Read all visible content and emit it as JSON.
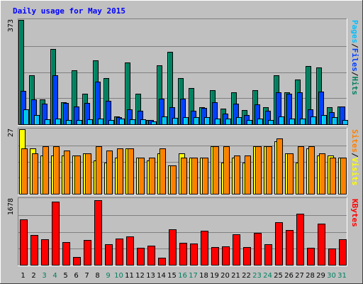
{
  "page": {
    "title": "Daily usage for May 2015",
    "background": "#c0c0c0",
    "panel_background": "#c0c0c0",
    "gridline_color": "#808080",
    "title_color": "#0000ff"
  },
  "chart_data": [
    {
      "type": "bar",
      "panel": "hits-files-pages",
      "ymax_label": "373",
      "ylim": [
        0,
        373
      ],
      "categories": [
        "1",
        "2",
        "3",
        "4",
        "5",
        "6",
        "7",
        "8",
        "9",
        "10",
        "11",
        "12",
        "13",
        "14",
        "15",
        "16",
        "17",
        "18",
        "19",
        "20",
        "21",
        "22",
        "23",
        "24",
        "25",
        "26",
        "27",
        "28",
        "29",
        "30",
        "31"
      ],
      "legend": [
        {
          "name": "Pages",
          "color": "#00c0ff"
        },
        {
          "name": "/",
          "color": "#000000"
        },
        {
          "name": "Files",
          "color": "#0040ff"
        },
        {
          "name": "/",
          "color": "#000000"
        },
        {
          "name": "Hits",
          "color": "#008060"
        }
      ],
      "series": [
        {
          "name": "Hits",
          "color": "#008060",
          "values": [
            373,
            176,
            89,
            268,
            79,
            192,
            110,
            228,
            164,
            28,
            222,
            110,
            16,
            210,
            258,
            166,
            129,
            62,
            121,
            56,
            113,
            52,
            123,
            62,
            176,
            113,
            161,
            208,
            202,
            62,
            64
          ]
        },
        {
          "name": "Files",
          "color": "#0040ff",
          "values": [
            119,
            90,
            74,
            176,
            76,
            64,
            76,
            152,
            84,
            25,
            54,
            49,
            14,
            92,
            62,
            92,
            47,
            58,
            79,
            38,
            73,
            32,
            71,
            48,
            113,
            109,
            114,
            54,
            117,
            43,
            64
          ]
        },
        {
          "name": "Pages",
          "color": "#00c0ff",
          "values": [
            54,
            34,
            19,
            21,
            16,
            16,
            19,
            21,
            16,
            21,
            17,
            19,
            11,
            28,
            22,
            25,
            25,
            25,
            21,
            21,
            25,
            14,
            21,
            15,
            28,
            21,
            21,
            28,
            32,
            25,
            16
          ]
        }
      ]
    },
    {
      "type": "bar",
      "panel": "visits-sites",
      "ymax_label": "27",
      "ylim": [
        0,
        27
      ],
      "categories": [
        "1",
        "2",
        "3",
        "4",
        "5",
        "6",
        "7",
        "8",
        "9",
        "10",
        "11",
        "12",
        "13",
        "14",
        "15",
        "16",
        "17",
        "18",
        "19",
        "20",
        "21",
        "22",
        "23",
        "24",
        "25",
        "26",
        "27",
        "28",
        "29",
        "30",
        "31"
      ],
      "legend": [
        {
          "name": "Sites",
          "color": "#ff8000"
        },
        {
          "name": "/",
          "color": "#000000"
        },
        {
          "name": "Visits",
          "color": "#ffff00"
        }
      ],
      "series": [
        {
          "name": "Visits",
          "color": "#ffff00",
          "values": [
            27,
            19,
            16,
            16,
            16,
            16,
            17,
            14,
            13,
            15,
            19,
            15,
            14,
            17,
            12,
            17,
            15,
            15,
            20,
            13,
            15,
            13,
            20,
            20,
            22,
            17,
            13,
            19,
            16,
            16,
            15
          ]
        },
        {
          "name": "Sites",
          "color": "#ff8000",
          "values": [
            19,
            17,
            20,
            20,
            18,
            16,
            17,
            20,
            18,
            19,
            19,
            15,
            15,
            19,
            12,
            15,
            15,
            15,
            20,
            20,
            16,
            16,
            20,
            20,
            23,
            17,
            20,
            20,
            17,
            15,
            15
          ]
        }
      ]
    },
    {
      "type": "bar",
      "panel": "kbytes",
      "ymax_label": "1678",
      "ylim": [
        0,
        1678
      ],
      "categories": [
        "1",
        "2",
        "3",
        "4",
        "5",
        "6",
        "7",
        "8",
        "9",
        "10",
        "11",
        "12",
        "13",
        "14",
        "15",
        "16",
        "17",
        "18",
        "19",
        "20",
        "21",
        "22",
        "23",
        "24",
        "25",
        "26",
        "27",
        "28",
        "29",
        "30",
        "31"
      ],
      "x_label_colors": [
        "#000000",
        "#000000",
        "#008060",
        "#008060",
        "#000000",
        "#000000",
        "#000000",
        "#000000",
        "#008060",
        "#008060",
        "#000000",
        "#000000",
        "#000000",
        "#000000",
        "#000000",
        "#008060",
        "#008060",
        "#000000",
        "#000000",
        "#000000",
        "#000000",
        "#000000",
        "#008060",
        "#008060",
        "#000000",
        "#000000",
        "#000000",
        "#000000",
        "#000000",
        "#008060",
        "#008060"
      ],
      "legend": [
        {
          "name": "KBytes",
          "color": "#ff0000"
        }
      ],
      "series": [
        {
          "name": "KBytes",
          "color": "#ff0000",
          "values": [
            1150,
            760,
            650,
            1600,
            570,
            200,
            640,
            1640,
            530,
            670,
            730,
            430,
            480,
            180,
            900,
            560,
            540,
            860,
            460,
            470,
            770,
            450,
            820,
            520,
            1080,
            890,
            1300,
            430,
            1050,
            410,
            650
          ]
        }
      ]
    }
  ]
}
